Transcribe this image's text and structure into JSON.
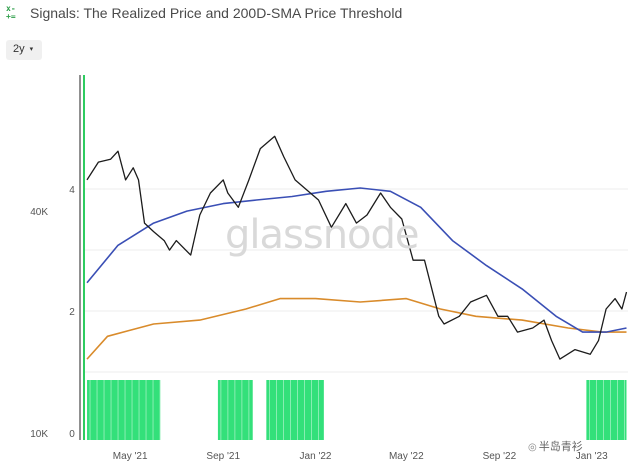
{
  "header": {
    "icon": "grid-app-icon",
    "title": "Signals: The Realized Price and 200D-SMA Price Threshold"
  },
  "controls": {
    "range_label": "2y",
    "range_caret": "▾"
  },
  "watermark": "glassnode",
  "credit": {
    "icon": "camera-icon",
    "text": "半岛青衫"
  },
  "colors": {
    "price": "#1c1c1c",
    "sma200": "#3a4fb5",
    "realized": "#d98b2b",
    "signal": "#33e07a",
    "axis_green": "#2ecc60"
  },
  "chart_data": {
    "type": "line",
    "title": "Signals: The Realized Price and 200D-SMA Price Threshold",
    "x_ticks": [
      "May '21",
      "Sep '21",
      "Jan '22",
      "May '22",
      "Sep '22",
      "Jan '23"
    ],
    "xlim": [
      "2021-03",
      "2023-02"
    ],
    "y_left_ticks": [
      "40K",
      "10K"
    ],
    "y_right_ticks": [
      "4",
      "2",
      "0"
    ],
    "y_right_range": [
      0,
      4
    ],
    "grid": "horizontal",
    "series": [
      {
        "name": "",
        "role": "price",
        "x": [
          "2021-03-05",
          "2021-03-20",
          "2021-04-05",
          "2021-04-15",
          "2021-04-25",
          "2021-05-05",
          "2021-05-12",
          "2021-05-20",
          "2021-06-01",
          "2021-06-15",
          "2021-06-22",
          "2021-07-01",
          "2021-07-20",
          "2021-08-01",
          "2021-08-15",
          "2021-09-01",
          "2021-09-07",
          "2021-09-21",
          "2021-10-05",
          "2021-10-20",
          "2021-11-08",
          "2021-11-20",
          "2021-12-05",
          "2021-12-20",
          "2022-01-05",
          "2022-01-22",
          "2022-02-10",
          "2022-02-24",
          "2022-03-10",
          "2022-03-28",
          "2022-04-10",
          "2022-04-25",
          "2022-05-10",
          "2022-05-25",
          "2022-06-13",
          "2022-06-20",
          "2022-07-10",
          "2022-07-25",
          "2022-08-15",
          "2022-08-30",
          "2022-09-12",
          "2022-09-25",
          "2022-10-15",
          "2022-10-30",
          "2022-11-09",
          "2022-11-20",
          "2022-12-10",
          "2022-12-30",
          "2023-01-10",
          "2023-01-20",
          "2023-02-01",
          "2023-02-10",
          "2023-02-16"
        ],
        "values": [
          50000,
          56000,
          57000,
          60000,
          50000,
          54000,
          50000,
          38000,
          36000,
          34000,
          32000,
          34000,
          31000,
          40000,
          46000,
          50000,
          46000,
          42000,
          50000,
          61000,
          66000,
          58000,
          50000,
          47000,
          44000,
          37000,
          43000,
          38000,
          40000,
          46000,
          42000,
          39000,
          30000,
          30000,
          21000,
          20000,
          21000,
          23000,
          24000,
          21000,
          21000,
          19000,
          19500,
          20500,
          18000,
          16000,
          17000,
          16500,
          18000,
          22000,
          23500,
          22000,
          24500
        ]
      },
      {
        "name": "",
        "role": "200d_sma",
        "x": [
          "2021-03-05",
          "2021-04-15",
          "2021-06-01",
          "2021-07-15",
          "2021-09-01",
          "2021-10-15",
          "2021-12-01",
          "2022-01-15",
          "2022-03-01",
          "2022-04-10",
          "2022-05-20",
          "2022-07-01",
          "2022-08-15",
          "2022-10-01",
          "2022-11-15",
          "2022-12-20",
          "2023-01-20",
          "2023-02-16"
        ],
        "values": [
          26000,
          33000,
          38000,
          41000,
          43000,
          44000,
          45000,
          46500,
          47500,
          46500,
          42000,
          34000,
          29000,
          25000,
          21000,
          19000,
          19000,
          19500
        ]
      },
      {
        "name": "",
        "role": "realized_price",
        "x": [
          "2021-03-05",
          "2021-04-01",
          "2021-06-01",
          "2021-08-01",
          "2021-10-01",
          "2021-11-15",
          "2022-01-01",
          "2022-03-01",
          "2022-05-01",
          "2022-06-15",
          "2022-08-01",
          "2022-10-01",
          "2022-12-01",
          "2023-01-15",
          "2023-02-16"
        ],
        "values": [
          16000,
          18500,
          20000,
          20500,
          22000,
          23500,
          23500,
          23000,
          23500,
          22000,
          21000,
          20500,
          19500,
          19000,
          19000
        ]
      }
    ],
    "signal_periods": [
      [
        "2021-03-05",
        "2021-06-10"
      ],
      [
        "2021-08-25",
        "2021-10-10"
      ],
      [
        "2021-10-28",
        "2022-01-12"
      ],
      [
        "2022-12-25",
        "2023-02-16"
      ]
    ]
  }
}
